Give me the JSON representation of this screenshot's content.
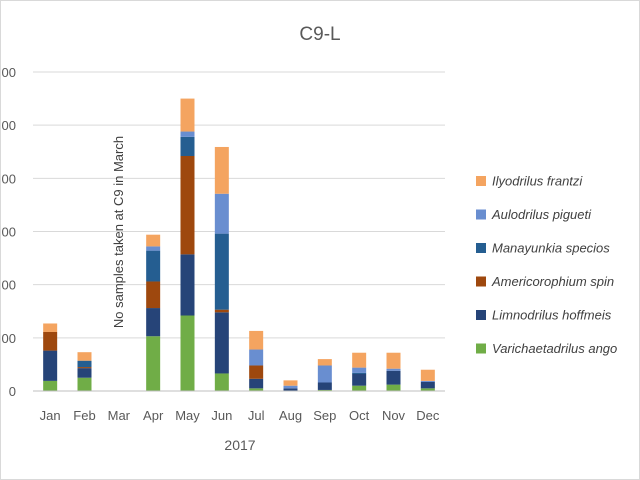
{
  "chart_data": {
    "type": "bar",
    "stacked": true,
    "title": "C9-L",
    "xlabel": "2017",
    "ylabel": "",
    "ylim": [
      0,
      600
    ],
    "yticks": [
      0,
      100,
      200,
      300,
      400,
      500,
      600
    ],
    "ytick_labels": [
      "0",
      "00",
      "00",
      "00",
      "00",
      "00",
      "00"
    ],
    "grid": true,
    "legend_position": "right",
    "categories": [
      "Jan",
      "Feb",
      "Mar",
      "Apr",
      "May",
      "Jun",
      "Jul",
      "Aug",
      "Sep",
      "Oct",
      "Nov",
      "Dec"
    ],
    "series": [
      {
        "name": "Varichaetadrilus angustipenis",
        "legend_label": "Varichaetadrilus ango",
        "color": "#70ad47",
        "values": [
          19,
          25,
          0,
          103,
          142,
          33,
          5,
          0,
          2,
          10,
          12,
          5
        ]
      },
      {
        "name": "Limnodrilus hoffmeisteri",
        "legend_label": "Limnodrilus hoffmeis",
        "color": "#264478",
        "values": [
          57,
          18,
          0,
          53,
          115,
          115,
          18,
          5,
          14,
          22,
          26,
          12
        ]
      },
      {
        "name": "Americorophium spinicorne",
        "legend_label": "Americorophium spin",
        "color": "#9e480e",
        "values": [
          35,
          2,
          0,
          50,
          185,
          5,
          25,
          0,
          0,
          0,
          0,
          0
        ]
      },
      {
        "name": "Manayunkia speciosa",
        "legend_label": "Manayunkia specios",
        "color": "#255e91",
        "values": [
          0,
          12,
          0,
          58,
          36,
          143,
          0,
          0,
          0,
          2,
          0,
          0
        ]
      },
      {
        "name": "Aulodrilus pigueti",
        "legend_label": "Aulodrilus pigueti",
        "color": "#698ed0",
        "values": [
          0,
          0,
          0,
          8,
          10,
          75,
          30,
          5,
          32,
          10,
          4,
          2
        ]
      },
      {
        "name": "Ilyodrilus frantzi",
        "legend_label": "Ilyodrilus frantzi",
        "color": "#f4a460",
        "values": [
          16,
          16,
          0,
          22,
          62,
          88,
          35,
          10,
          12,
          28,
          30,
          21
        ]
      }
    ],
    "annotations": [
      {
        "category": "Mar",
        "text": "No samples taken at C9 in March"
      }
    ]
  }
}
